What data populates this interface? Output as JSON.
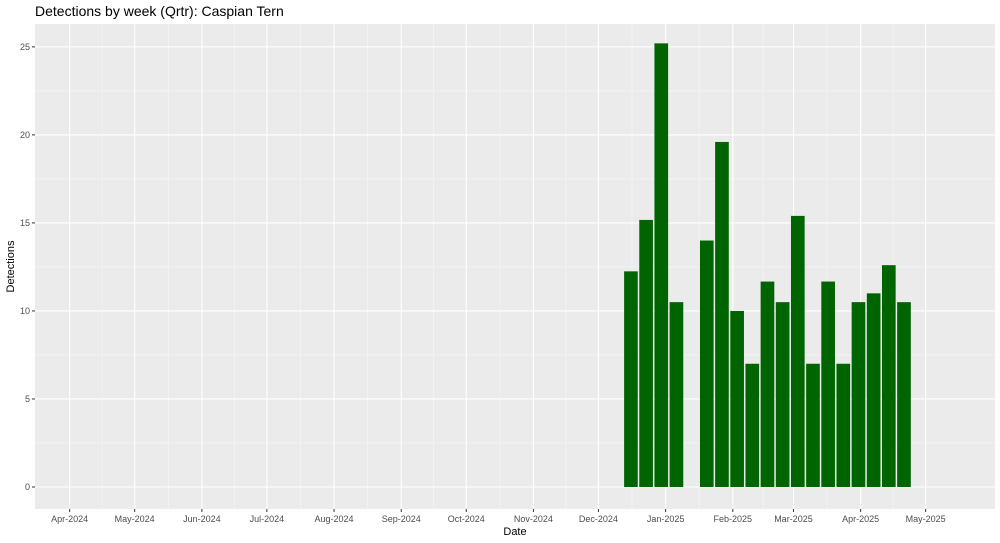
{
  "chart_data": {
    "type": "bar",
    "title": "Detections by week (Qrtr): Caspian Tern",
    "xlabel": "Date",
    "ylabel": "Detections",
    "x_range": [
      "2024-03-16",
      "2025-06-02"
    ],
    "ylim": [
      -1.25,
      26.3
    ],
    "y_ticks": [
      0,
      5,
      10,
      15,
      20,
      25
    ],
    "x_ticks": [
      {
        "date": "2024-04-01",
        "label": "Apr-2024"
      },
      {
        "date": "2024-05-01",
        "label": "May-2024"
      },
      {
        "date": "2024-06-01",
        "label": "Jun-2024"
      },
      {
        "date": "2024-07-01",
        "label": "Jul-2024"
      },
      {
        "date": "2024-08-01",
        "label": "Aug-2024"
      },
      {
        "date": "2024-09-01",
        "label": "Sep-2024"
      },
      {
        "date": "2024-10-01",
        "label": "Oct-2024"
      },
      {
        "date": "2024-11-01",
        "label": "Nov-2024"
      },
      {
        "date": "2024-12-01",
        "label": "Dec-2024"
      },
      {
        "date": "2025-01-01",
        "label": "Jan-2025"
      },
      {
        "date": "2025-02-01",
        "label": "Feb-2025"
      },
      {
        "date": "2025-03-01",
        "label": "Mar-2025"
      },
      {
        "date": "2025-04-01",
        "label": "Apr-2025"
      },
      {
        "date": "2025-05-01",
        "label": "May-2025"
      }
    ],
    "bar_color": "#006400",
    "panel_background": "#ebebeb",
    "grid": true,
    "series": [
      {
        "points": [
          {
            "week": "2024-12-16",
            "value": 12.25
          },
          {
            "week": "2024-12-23",
            "value": 15.17
          },
          {
            "week": "2024-12-30",
            "value": 25.2
          },
          {
            "week": "2025-01-06",
            "value": 10.5
          },
          {
            "week": "2025-01-20",
            "value": 14.0
          },
          {
            "week": "2025-01-27",
            "value": 19.6
          },
          {
            "week": "2025-02-03",
            "value": 10.0
          },
          {
            "week": "2025-02-10",
            "value": 7.0
          },
          {
            "week": "2025-02-17",
            "value": 11.67
          },
          {
            "week": "2025-02-24",
            "value": 10.5
          },
          {
            "week": "2025-03-03",
            "value": 15.4
          },
          {
            "week": "2025-03-10",
            "value": 7.0
          },
          {
            "week": "2025-03-17",
            "value": 11.67
          },
          {
            "week": "2025-03-24",
            "value": 7.0
          },
          {
            "week": "2025-03-31",
            "value": 10.5
          },
          {
            "week": "2025-04-07",
            "value": 11.0
          },
          {
            "week": "2025-04-14",
            "value": 12.6
          },
          {
            "week": "2025-04-21",
            "value": 10.5
          }
        ]
      }
    ]
  }
}
